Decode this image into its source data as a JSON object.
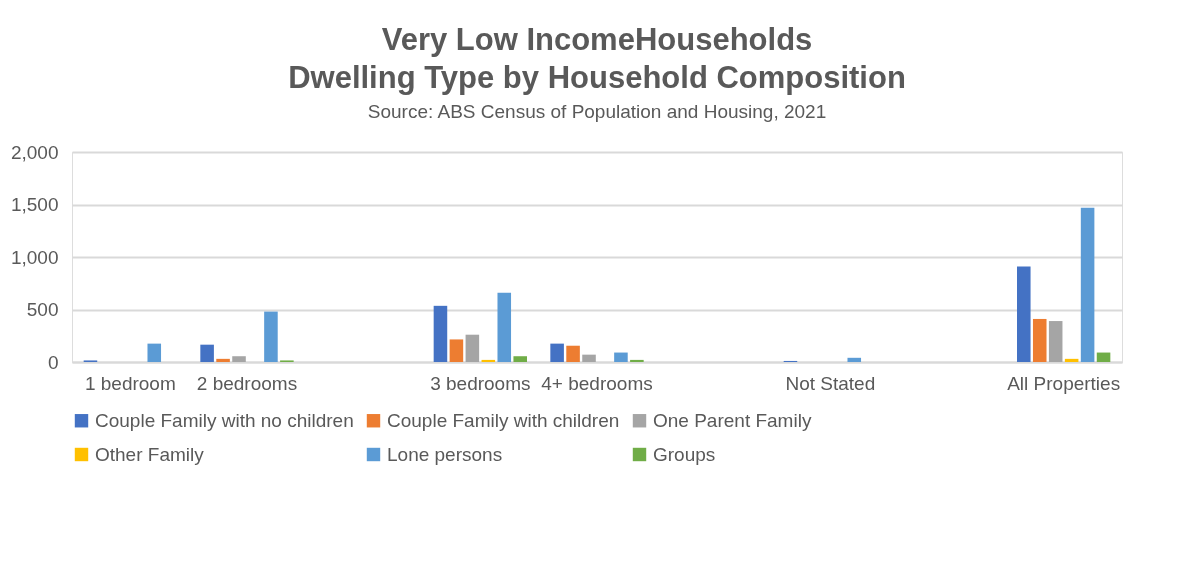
{
  "chart_data": {
    "type": "bar",
    "title": "Very Low IncomeHouseholds\nDwelling Type by Household Composition",
    "subtitle": "Source: ABS Census of Population and Housing, 2021",
    "categories": [
      "1 bedroom",
      "2 bedrooms",
      null,
      "3 bedrooms",
      "4+ bedrooms",
      null,
      "Not Stated",
      null,
      "All Properties"
    ],
    "series": [
      {
        "name": "Couple Family with no children",
        "color": "#4472c4",
        "values": [
          15,
          165,
          null,
          535,
          175,
          null,
          10,
          null,
          910
        ]
      },
      {
        "name": "Couple Family with children",
        "color": "#ed7d31",
        "values": [
          null,
          30,
          null,
          215,
          155,
          null,
          null,
          null,
          410
        ]
      },
      {
        "name": "One Parent Family",
        "color": "#a5a5a5",
        "values": [
          null,
          55,
          null,
          260,
          70,
          null,
          null,
          null,
          390
        ]
      },
      {
        "name": "Other Family",
        "color": "#ffc000",
        "values": [
          null,
          null,
          null,
          20,
          null,
          null,
          null,
          null,
          30
        ]
      },
      {
        "name": "Lone persons",
        "color": "#5b9bd5",
        "values": [
          175,
          480,
          null,
          660,
          90,
          null,
          40,
          null,
          1470
        ]
      },
      {
        "name": "Groups",
        "color": "#70ad47",
        "values": [
          null,
          15,
          null,
          55,
          20,
          null,
          null,
          null,
          90
        ]
      }
    ],
    "ylim": [
      0,
      2000
    ],
    "yticks": [
      0,
      500,
      {
        "value": 1000,
        "label": "1,000"
      },
      {
        "value": 1500,
        "label": "1,500"
      },
      {
        "value": 2000,
        "label": "2,000"
      }
    ],
    "grid": "y",
    "legend": "bottom"
  }
}
